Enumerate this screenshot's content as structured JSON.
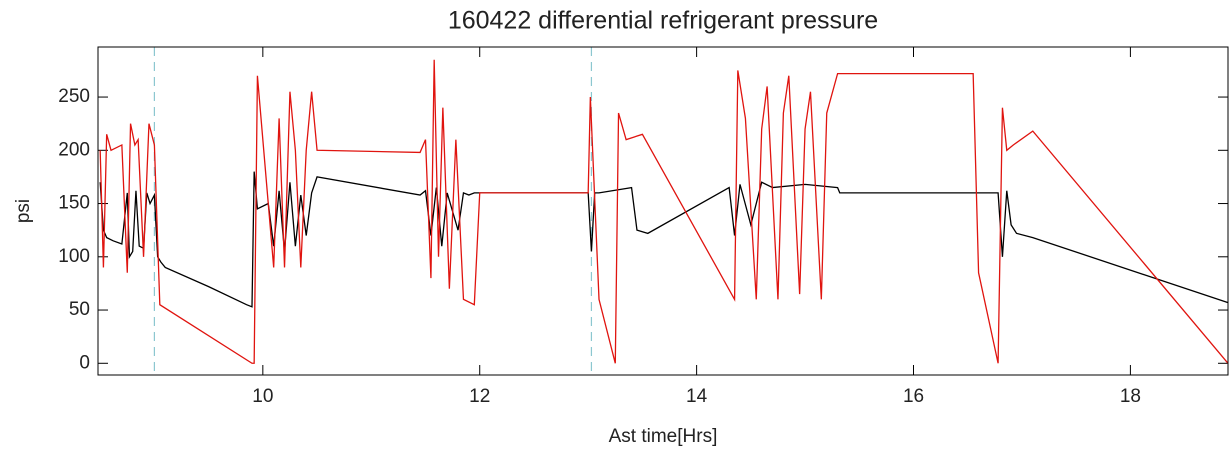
{
  "chart_data": {
    "type": "line",
    "title": "160422 differential refrigerant pressure",
    "xlabel": "Ast time[Hrs]",
    "ylabel": "psi",
    "xlim": [
      8.48,
      18.9
    ],
    "ylim": [
      -11,
      297
    ],
    "xticks": [
      10,
      12,
      14,
      16,
      18
    ],
    "yticks": [
      0,
      50,
      100,
      150,
      200,
      250
    ],
    "vlines": [
      9.0,
      13.03
    ],
    "vline_color": "#8cc7d0",
    "series": [
      {
        "color": "#000000",
        "x": [
          8.5,
          8.53,
          8.56,
          8.62,
          8.7,
          8.75,
          8.77,
          8.8,
          8.83,
          8.86,
          8.9,
          8.93,
          8.96,
          9.0,
          9.03,
          9.06,
          9.1,
          9.5,
          9.85,
          9.9,
          9.92,
          9.95,
          10.05,
          10.1,
          10.15,
          10.2,
          10.25,
          10.3,
          10.35,
          10.4,
          10.45,
          10.5,
          11.45,
          11.5,
          11.55,
          11.6,
          11.65,
          11.7,
          11.8,
          11.85,
          11.9,
          11.95,
          12.0,
          13.0,
          13.03,
          13.06,
          13.1,
          13.4,
          13.45,
          13.55,
          14.3,
          14.35,
          14.4,
          14.5,
          14.6,
          14.7,
          15.0,
          15.3,
          15.32,
          16.5,
          16.78,
          16.82,
          16.86,
          16.9,
          16.95,
          17.1,
          18.9
        ],
        "values": [
          170,
          125,
          118,
          115,
          112,
          160,
          100,
          105,
          162,
          110,
          108,
          160,
          150,
          158,
          100,
          95,
          90,
          72,
          55,
          53,
          180,
          145,
          150,
          110,
          162,
          105,
          170,
          110,
          158,
          120,
          160,
          175,
          158,
          162,
          120,
          165,
          110,
          160,
          125,
          160,
          158,
          160,
          160,
          160,
          105,
          160,
          160,
          165,
          125,
          122,
          165,
          120,
          168,
          130,
          170,
          165,
          168,
          165,
          160,
          160,
          160,
          100,
          162,
          130,
          122,
          118,
          57
        ]
      },
      {
        "color": "#e0140f",
        "x": [
          8.5,
          8.53,
          8.56,
          8.6,
          8.7,
          8.75,
          8.78,
          8.82,
          8.85,
          8.9,
          8.95,
          9.0,
          9.05,
          9.9,
          9.92,
          9.95,
          10.0,
          10.05,
          10.1,
          10.15,
          10.2,
          10.25,
          10.3,
          10.35,
          10.4,
          10.45,
          10.5,
          11.45,
          11.5,
          11.55,
          11.58,
          11.62,
          11.66,
          11.72,
          11.78,
          11.85,
          11.95,
          12.0,
          13.0,
          13.02,
          13.1,
          13.25,
          13.28,
          13.35,
          13.5,
          14.35,
          14.38,
          14.45,
          14.55,
          14.6,
          14.65,
          14.75,
          14.8,
          14.85,
          14.95,
          15.0,
          15.05,
          15.15,
          15.2,
          15.3,
          16.55,
          16.6,
          16.78,
          16.82,
          16.86,
          16.92,
          17.1,
          18.9
        ],
        "values": [
          200,
          90,
          215,
          200,
          205,
          85,
          225,
          205,
          210,
          100,
          225,
          205,
          55,
          0,
          0,
          270,
          210,
          150,
          90,
          230,
          90,
          255,
          200,
          90,
          200,
          255,
          200,
          198,
          210,
          80,
          285,
          100,
          240,
          70,
          210,
          60,
          55,
          160,
          160,
          250,
          60,
          0,
          235,
          210,
          215,
          60,
          275,
          230,
          60,
          220,
          260,
          60,
          235,
          270,
          65,
          220,
          255,
          60,
          235,
          272,
          272,
          85,
          0,
          240,
          200,
          205,
          218,
          0
        ]
      }
    ]
  }
}
